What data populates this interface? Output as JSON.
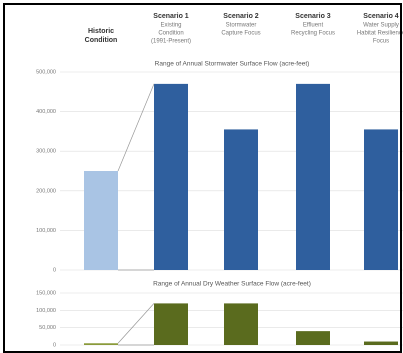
{
  "columns": [
    {
      "title": [
        "Historic",
        "Condition"
      ],
      "description": []
    },
    {
      "title": [
        "Scenario 1"
      ],
      "description": [
        "Existing",
        "Condition",
        "(1991-Present)"
      ]
    },
    {
      "title": [
        "Scenario 2"
      ],
      "description": [
        "Stormwater",
        "Capture Focus"
      ]
    },
    {
      "title": [
        "Scenario 3"
      ],
      "description": [
        "Effluent",
        "Recycling Focus"
      ]
    },
    {
      "title": [
        "Scenario 4"
      ],
      "description": [
        "Water Supply",
        "Habitat Resilience",
        "Focus"
      ]
    }
  ],
  "chart_data": [
    {
      "type": "bar",
      "title": "Range of Annual Stormwater Surface Flow (acre-feet)",
      "values": [
        250000,
        470000,
        355000,
        470000,
        355000
      ],
      "colors": [
        "#a9c4e4",
        "#2f5f9e",
        "#2f5f9e",
        "#2f5f9e",
        "#2f5f9e"
      ],
      "ylim": [
        0,
        500000
      ],
      "yticks": [
        0,
        {
          "value": 100000,
          "label": "100,000"
        },
        {
          "value": 200000,
          "label": "200,000"
        },
        {
          "value": 300000,
          "label": "300,000"
        },
        {
          "value": 400000,
          "label": "400,000"
        },
        {
          "value": 500000,
          "label": "500,000"
        }
      ]
    },
    {
      "type": "bar",
      "title": "Range of Annual Dry Weather Surface Flow (acre-feet)",
      "values": [
        5000,
        120000,
        120000,
        40000,
        10000
      ],
      "colors": [
        "#8a9a3a",
        "#5a6b1e",
        "#5a6b1e",
        "#5a6b1e",
        "#5a6b1e"
      ],
      "ylim": [
        0,
        150000
      ],
      "yticks": [
        0,
        {
          "value": 50000,
          "label": "50,000"
        },
        {
          "value": 100000,
          "label": "100,000"
        },
        {
          "value": 150000,
          "label": "150,000"
        }
      ]
    }
  ]
}
